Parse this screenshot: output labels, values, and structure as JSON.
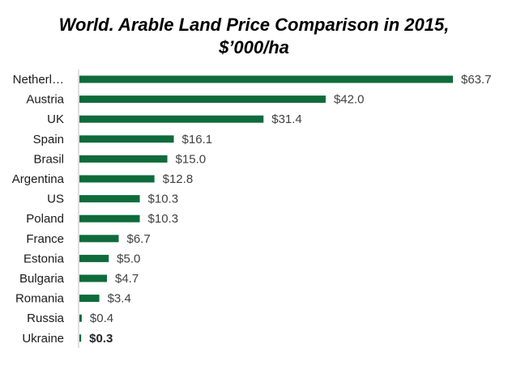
{
  "chart_data": {
    "type": "bar",
    "orientation": "horizontal",
    "title_lines": [
      "World. Arable Land Price Comparison in 2015,",
      "$’000/ha"
    ],
    "categories": [
      "Netherl…",
      "Austria",
      "UK",
      "Spain",
      "Brasil",
      "Argentina",
      "US",
      "Poland",
      "France",
      "Estonia",
      "Bulgaria",
      "Romania",
      "Russia",
      "Ukraine"
    ],
    "values": [
      63.7,
      42.0,
      31.4,
      16.1,
      15.0,
      12.8,
      10.3,
      10.3,
      6.7,
      5.0,
      4.7,
      3.4,
      0.4,
      0.3
    ],
    "value_labels": [
      "$63.7",
      "$42.0",
      "$31.4",
      "$16.1",
      "$15.0",
      "$12.8",
      "$10.3",
      "$10.3",
      "$6.7",
      "$5.0",
      "$4.7",
      "$3.4",
      "$0.4",
      "$0.3"
    ],
    "bold_label_index": 13,
    "bar_color": "#0f6b3b",
    "axis_color": "#bfbfbf",
    "xlim": [
      0,
      63.7
    ],
    "grid": false,
    "legend": "none"
  }
}
